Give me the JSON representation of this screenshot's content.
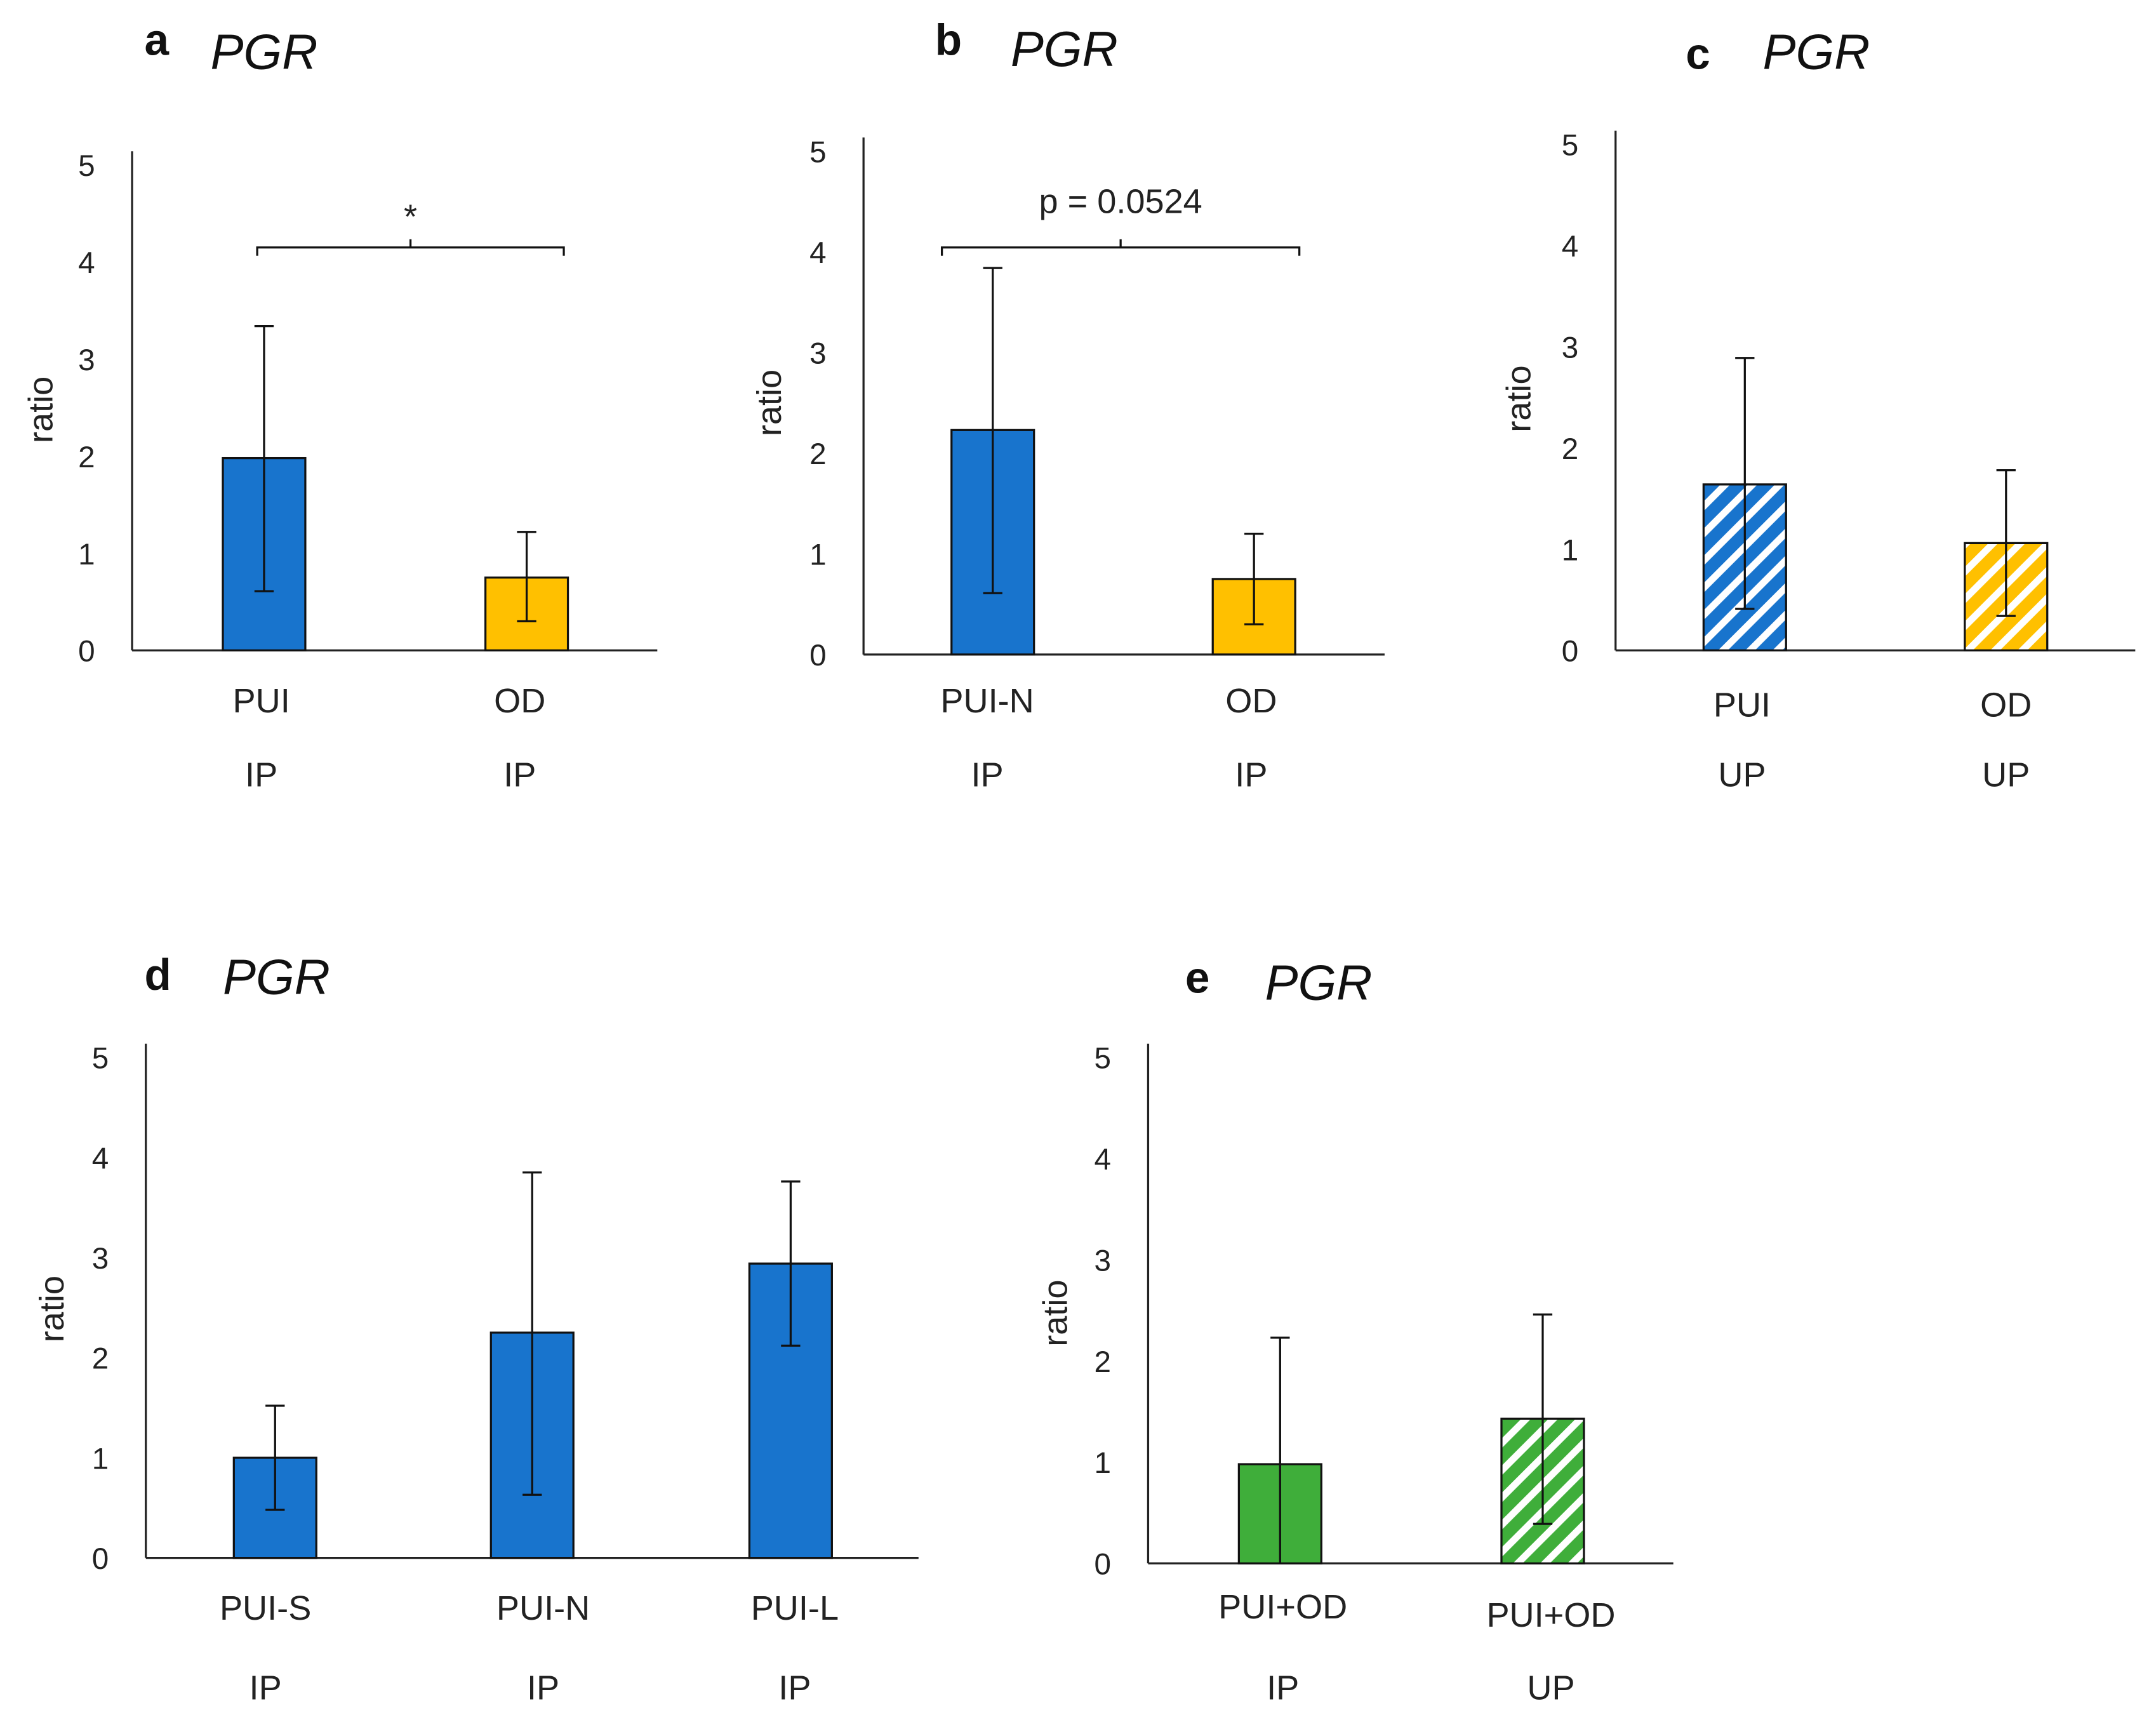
{
  "colors": {
    "blue": "#1874CD",
    "yellow": "#FFC000",
    "green": "#3FAE3A",
    "axis": "#222222"
  },
  "chart_data": [
    {
      "type": "bar",
      "panel": "a",
      "title": "PGR",
      "ylabel": "ratio",
      "ylim": [
        0,
        5
      ],
      "yticks": [
        "0",
        "1",
        "2",
        "3",
        "4",
        "5"
      ],
      "categories": [
        [
          "PUI",
          "IP"
        ],
        [
          "OD",
          "IP"
        ]
      ],
      "values": [
        1.98,
        0.75
      ],
      "err_high": [
        3.34,
        1.22
      ],
      "err_low": [
        0.61,
        0.3
      ],
      "fill": [
        "blue",
        "yellow"
      ],
      "hatched": [
        false,
        false
      ],
      "annotation": {
        "text": "*",
        "between": [
          0,
          1
        ]
      }
    },
    {
      "type": "bar",
      "panel": "b",
      "title": "PGR",
      "ylabel": "ratio",
      "ylim": [
        0,
        5
      ],
      "yticks": [
        "0",
        "1",
        "2",
        "3",
        "4",
        "5"
      ],
      "categories": [
        [
          "PUI-N",
          "IP"
        ],
        [
          "OD",
          "IP"
        ]
      ],
      "values": [
        2.23,
        0.75
      ],
      "err_high": [
        3.84,
        1.2
      ],
      "err_low": [
        0.61,
        0.3
      ],
      "fill": [
        "blue",
        "yellow"
      ],
      "hatched": [
        false,
        false
      ],
      "annotation": {
        "text": "p = 0.0524",
        "between": [
          0,
          1
        ]
      }
    },
    {
      "type": "bar",
      "panel": "c",
      "title": "PGR",
      "ylabel": "ratio",
      "ylim": [
        0,
        5
      ],
      "yticks": [
        "0",
        "1",
        "2",
        "3",
        "4",
        "5"
      ],
      "categories": [
        [
          "PUI",
          "UP"
        ],
        [
          "OD",
          "UP"
        ]
      ],
      "values": [
        1.64,
        1.06
      ],
      "err_high": [
        2.89,
        1.78
      ],
      "err_low": [
        0.41,
        0.34
      ],
      "fill": [
        "blue",
        "yellow"
      ],
      "hatched": [
        true,
        true
      ]
    },
    {
      "type": "bar",
      "panel": "d",
      "title": "PGR",
      "ylabel": "ratio",
      "ylim": [
        0,
        5
      ],
      "yticks": [
        "0",
        "1",
        "2",
        "3",
        "4",
        "5"
      ],
      "categories": [
        [
          "PUI-S",
          "IP"
        ],
        [
          "PUI-N",
          "IP"
        ],
        [
          "PUI-L",
          "IP"
        ]
      ],
      "values": [
        1.0,
        2.25,
        2.94
      ],
      "err_high": [
        1.52,
        3.85,
        3.76
      ],
      "err_low": [
        0.48,
        0.63,
        2.12
      ],
      "fill": [
        "blue",
        "blue",
        "blue"
      ],
      "hatched": [
        false,
        false,
        false
      ]
    },
    {
      "type": "bar",
      "panel": "e",
      "title": "PGR",
      "ylabel": "ratio",
      "ylim": [
        0,
        5
      ],
      "yticks": [
        "0",
        "1",
        "2",
        "3",
        "4",
        "5"
      ],
      "categories": [
        [
          "PUI+OD",
          "IP"
        ],
        [
          "PUI+OD",
          "UP"
        ]
      ],
      "values": [
        0.98,
        1.43
      ],
      "err_high": [
        2.23,
        2.46
      ],
      "err_low": [
        0.0,
        0.39
      ],
      "fill": [
        "green",
        "green"
      ],
      "hatched": [
        false,
        true
      ]
    }
  ]
}
